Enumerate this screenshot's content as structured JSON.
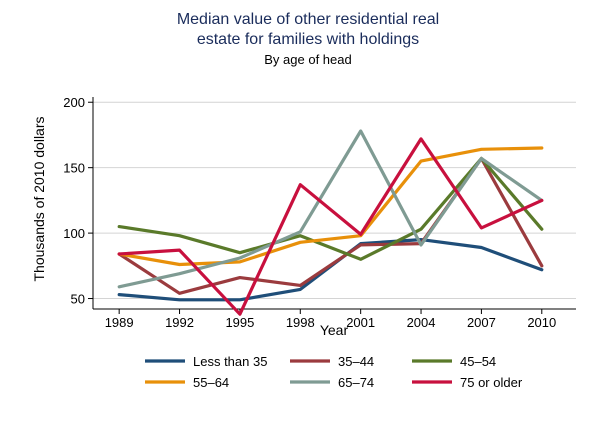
{
  "chart_data": {
    "type": "line",
    "title": "Median value of other residential real estate for families with holdings",
    "title_lines": [
      "Median value of other residential real",
      "estate for families with holdings"
    ],
    "subtitle": "By age of head",
    "xlabel": "Year",
    "ylabel": "Thousands of 2010 dollars",
    "x": [
      1989,
      1992,
      1995,
      1998,
      2001,
      2004,
      2007,
      2010
    ],
    "x_tick_labels": [
      "1989",
      "1992",
      "1995",
      "1998",
      "2001",
      "2004",
      "2007",
      "2010"
    ],
    "y_ticks": [
      50,
      100,
      150,
      200
    ],
    "y_tick_labels": [
      "50",
      "100",
      "150",
      "200"
    ],
    "xlim": [
      1987.7,
      2011.7
    ],
    "ylim": [
      42,
      204
    ],
    "grid": "horizontal",
    "legend_position": "bottom",
    "series": [
      {
        "name": "Less than 35",
        "color": "#1f4e79",
        "values": [
          53,
          49,
          49,
          57,
          92,
          95,
          89,
          72
        ]
      },
      {
        "name": "35–44",
        "color": "#9b3b3e",
        "values": [
          84,
          54,
          66,
          60,
          91,
          92,
          157,
          75
        ]
      },
      {
        "name": "45–54",
        "color": "#5a7a2a",
        "values": [
          105,
          98,
          85,
          98,
          80,
          103,
          157,
          103
        ]
      },
      {
        "name": "55–64",
        "color": "#e8900a",
        "values": [
          84,
          76,
          78,
          93,
          98,
          155,
          164,
          165
        ]
      },
      {
        "name": "65–74",
        "color": "#7f9b93",
        "values": [
          59,
          69,
          81,
          101,
          178,
          91,
          157,
          125
        ]
      },
      {
        "name": "75 or older",
        "color": "#c8103e",
        "values": [
          84,
          87,
          38,
          137,
          99,
          172,
          104,
          125
        ]
      }
    ]
  }
}
